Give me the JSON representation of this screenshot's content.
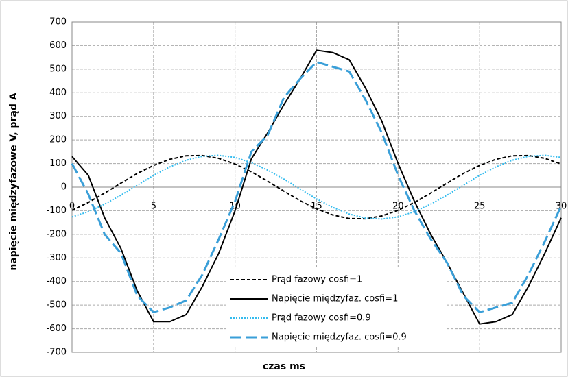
{
  "chart_data": {
    "type": "line",
    "x_label": "czas ms",
    "y_label": "napięcie międzyfazowe V,    prąd A",
    "x": [
      0,
      1,
      2,
      3,
      4,
      5,
      6,
      7,
      8,
      9,
      10,
      11,
      12,
      13,
      14,
      15,
      16,
      17,
      18,
      19,
      20,
      21,
      22,
      23,
      24,
      25,
      26,
      27,
      28,
      29,
      30
    ],
    "series": [
      {
        "name": "Prąd fazowy cosfi=1",
        "color": "#000000",
        "dash": "5,3",
        "values": [
          -98,
          -65,
          -25,
          17,
          58,
          92,
          118,
          133,
          134,
          122,
          98,
          65,
          25,
          -17,
          -58,
          -92,
          -118,
          -133,
          -134,
          -122,
          -98,
          -65,
          -25,
          17,
          58,
          92,
          118,
          133,
          134,
          122,
          98
        ]
      },
      {
        "name": "Napięcie międzyfaz. cosfi=1",
        "color": "#000000",
        "dash": "none",
        "values": [
          130,
          50,
          -130,
          -260,
          -440,
          -570,
          -570,
          -540,
          -420,
          -280,
          -100,
          120,
          230,
          350,
          460,
          580,
          570,
          540,
          420,
          280,
          100,
          -60,
          -200,
          -320,
          -450,
          -580,
          -570,
          -540,
          -420,
          -280,
          -130
        ]
      },
      {
        "name": "Prąd fazowy cosfi=0.9",
        "color": "#33bbee",
        "dash": "2,2",
        "values": [
          -126,
          -104,
          -72,
          -34,
          8,
          50,
          86,
          114,
          131,
          135,
          126,
          104,
          72,
          34,
          -8,
          -50,
          -86,
          -114,
          -131,
          -135,
          -126,
          -104,
          -72,
          -34,
          8,
          50,
          86,
          114,
          131,
          135,
          126
        ]
      },
      {
        "name": "Napięcie międzyfaz. cosfi=0.9",
        "color": "#3a9fd8",
        "dash": "16,6",
        "values": [
          100,
          -30,
          -200,
          -280,
          -460,
          -530,
          -510,
          -480,
          -370,
          -220,
          -60,
          150,
          220,
          380,
          460,
          530,
          510,
          490,
          370,
          230,
          50,
          -100,
          -220,
          -320,
          -460,
          -530,
          -510,
          -490,
          -370,
          -230,
          -80
        ]
      }
    ],
    "xlim": [
      0,
      30
    ],
    "xticks": [
      0,
      5,
      10,
      15,
      20,
      25,
      30
    ],
    "ylim": [
      -700,
      700
    ],
    "yticks": [
      -700,
      -600,
      -500,
      -400,
      -300,
      -200,
      -100,
      0,
      100,
      200,
      300,
      400,
      500,
      600,
      700
    ],
    "grid": true
  }
}
